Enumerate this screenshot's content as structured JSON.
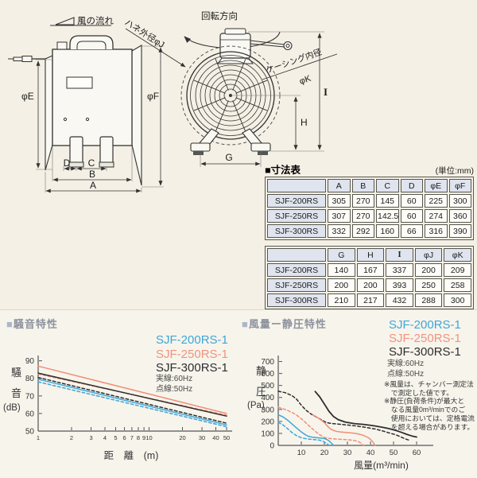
{
  "colors": {
    "blue": "#3ea6d8",
    "salmon": "#f0937e",
    "dark": "#2e2e2e"
  },
  "diagrams": {
    "side_view": {
      "wind_flow": "風の流れ",
      "phi_e": "φE",
      "phi_f": "φF",
      "dim_a": "A",
      "dim_b": "B",
      "dim_c": "C",
      "dim_d": "D"
    },
    "front_view": {
      "rotation": "回転方向",
      "blade_od": "ハネ外径φJ",
      "casing_id": "ケーシング内径",
      "casing_id_sym": "φK",
      "dim_g": "G",
      "dim_h": "H",
      "dim_i": "I"
    }
  },
  "dimension_tables": {
    "title": "■寸法表",
    "unit_note": "(単位:mm)",
    "models_table_1": {
      "headers": [
        "",
        "A",
        "B",
        "C",
        "D",
        "φE",
        "φF"
      ],
      "rows": [
        [
          "SJF-200RS",
          "305",
          "270",
          "145",
          "60",
          "225",
          "300"
        ],
        [
          "SJF-250RS",
          "307",
          "270",
          "142.5",
          "60",
          "274",
          "360"
        ],
        [
          "SJF-300RS",
          "332",
          "292",
          "160",
          "66",
          "316",
          "390"
        ]
      ]
    },
    "models_table_2": {
      "headers": [
        "",
        "G",
        "H",
        "I",
        "φJ",
        "φK"
      ],
      "rows": [
        [
          "SJF-200RS",
          "140",
          "167",
          "337",
          "200",
          "209"
        ],
        [
          "SJF-250RS",
          "200",
          "200",
          "393",
          "250",
          "258"
        ],
        [
          "SJF-300RS",
          "210",
          "217",
          "432",
          "288",
          "300"
        ]
      ]
    }
  },
  "chart_data": [
    {
      "type": "line",
      "title": "騒音特性",
      "title_marker": "■",
      "xlabel": "距　離　(m)",
      "ylabel": "騒音(dB)",
      "ylabel_lines": [
        "騒",
        "音",
        "(dB)"
      ],
      "xscale": "log",
      "xlim": [
        1,
        50
      ],
      "ylim": [
        50,
        93
      ],
      "xticks": [
        1,
        2,
        3,
        4,
        5,
        6,
        7,
        8,
        9,
        10,
        20,
        30,
        40,
        50
      ],
      "yticks": [
        50,
        60,
        70,
        80,
        90
      ],
      "grid": false,
      "legend_position": "top-right",
      "legend_items": [
        {
          "label": "SJF-200RS-1",
          "color": "#3ea6d8"
        },
        {
          "label": "SJF-250RS-1",
          "color": "#f0937e"
        },
        {
          "label": "SJF-300RS-1",
          "color": "#2e2e2e"
        }
      ],
      "line_key": [
        "実線:60Hz",
        "点線:50Hz"
      ],
      "series": [
        {
          "name": "SJF-250RS-1 60Hz",
          "color": "#ef8f76",
          "style": "solid",
          "points": [
            [
              1,
              87
            ],
            [
              50,
              60
            ]
          ]
        },
        {
          "name": "SJF-250RS-1 50Hz",
          "color": "#ef8f76",
          "style": "dashed",
          "points": [
            [
              1,
              82.5
            ],
            [
              50,
              59
            ]
          ]
        },
        {
          "name": "SJF-300RS-1 60Hz",
          "color": "#2e2e2e",
          "style": "solid",
          "points": [
            [
              1,
              83
            ],
            [
              50,
              58.5
            ]
          ]
        },
        {
          "name": "SJF-300RS-1 50Hz",
          "color": "#2e2e2e",
          "style": "dashed",
          "points": [
            [
              1,
              80.5
            ],
            [
              50,
              54.5
            ]
          ]
        },
        {
          "name": "SJF-200RS-1 60Hz",
          "color": "#3ea6d8",
          "style": "solid",
          "points": [
            [
              1,
              79.5
            ],
            [
              50,
              53.5
            ]
          ]
        },
        {
          "name": "SJF-200RS-1 50Hz",
          "color": "#3ea6d8",
          "style": "dashed",
          "points": [
            [
              1,
              78
            ],
            [
              50,
              52.5
            ]
          ]
        }
      ]
    },
    {
      "type": "line",
      "title": "風量ー静圧特性",
      "title_marker": "■",
      "xlabel": "風量(m³/min)",
      "ylabel": "静圧(Pa)",
      "ylabel_lines": [
        "静",
        "圧",
        "(Pa)"
      ],
      "xscale": "linear",
      "xlim": [
        0,
        65.5
      ],
      "ylim": [
        0,
        750
      ],
      "xticks": [
        10,
        20,
        30,
        40,
        50,
        60
      ],
      "yticks": [
        0,
        100,
        200,
        300,
        400,
        500,
        600,
        700
      ],
      "grid": false,
      "legend_position": "top-right",
      "legend_items": [
        {
          "label": "SJF-200RS-1",
          "color": "#3ea6d8"
        },
        {
          "label": "SJF-250RS-1",
          "color": "#f0937e"
        },
        {
          "label": "SJF-300RS-1",
          "color": "#2e2e2e"
        }
      ],
      "line_key": [
        "実線:60Hz",
        "点線:50Hz"
      ],
      "notes": [
        "※風量は、チャンバー測定法",
        "　で測定した値です。",
        "※静圧(負荷条件)が最大と",
        "　なる風量0m³/minでのご",
        "　使用においては、定格電流",
        "　を超える場合があります。"
      ],
      "series": [
        {
          "name": "SJF-300RS-1 60Hz",
          "color": "#2e2e2e",
          "style": "solid",
          "width": 1.8,
          "points": [
            [
              16,
              450
            ],
            [
              18,
              405
            ],
            [
              20,
              345
            ],
            [
              22,
              285
            ],
            [
              24,
              240
            ],
            [
              26,
              215
            ],
            [
              29,
              195
            ],
            [
              33,
              182
            ],
            [
              37,
              175
            ],
            [
              41,
              165
            ],
            [
              45,
              152
            ],
            [
              48,
              140
            ],
            [
              51,
              125
            ],
            [
              54,
              105
            ],
            [
              56,
              90
            ],
            [
              58,
              78
            ],
            [
              60,
              70
            ]
          ]
        },
        {
          "name": "SJF-300RS-1 50Hz",
          "color": "#2e2e2e",
          "style": "dashed",
          "points": [
            [
              0,
              452
            ],
            [
              3,
              440
            ],
            [
              6,
              415
            ],
            [
              8,
              385
            ],
            [
              10,
              335
            ],
            [
              12,
              295
            ],
            [
              14,
              265
            ],
            [
              16,
              242
            ],
            [
              18,
              222
            ],
            [
              20,
              200
            ],
            [
              21,
              190
            ],
            [
              23,
              183
            ],
            [
              26,
              178
            ],
            [
              30,
              170
            ],
            [
              34,
              162
            ],
            [
              38,
              150
            ],
            [
              42,
              137
            ],
            [
              45,
              122
            ],
            [
              48,
              105
            ],
            [
              51,
              88
            ],
            [
              53,
              72
            ],
            [
              55,
              55
            ],
            [
              57,
              42
            ]
          ]
        },
        {
          "name": "SJF-250RS-1 60Hz",
          "color": "#ef8f76",
          "style": "solid",
          "points": [
            [
              15,
              255
            ],
            [
              16,
              245
            ],
            [
              18,
              220
            ],
            [
              20,
              190
            ],
            [
              21,
              168
            ],
            [
              22,
              148
            ],
            [
              23,
              133
            ],
            [
              25,
              118
            ],
            [
              27,
              112
            ],
            [
              30,
              107
            ],
            [
              33,
              101
            ],
            [
              35,
              94
            ],
            [
              37,
              83
            ],
            [
              39,
              65
            ],
            [
              40,
              50
            ],
            [
              41,
              30
            ],
            [
              42,
              0
            ]
          ]
        },
        {
          "name": "SJF-250RS-1 50Hz",
          "color": "#ef8f76",
          "style": "dashed",
          "points": [
            [
              0,
              318
            ],
            [
              3,
              300
            ],
            [
              6,
              275
            ],
            [
              8,
              252
            ],
            [
              10,
              222
            ],
            [
              12,
              188
            ],
            [
              14,
              152
            ],
            [
              16,
              118
            ],
            [
              18,
              88
            ],
            [
              20,
              66
            ],
            [
              22,
              58
            ],
            [
              25,
              53
            ],
            [
              28,
              50
            ],
            [
              31,
              46
            ],
            [
              33,
              41
            ],
            [
              35,
              30
            ],
            [
              36,
              18
            ],
            [
              37,
              0
            ]
          ]
        },
        {
          "name": "SJF-200RS-1 60Hz",
          "color": "#3ea6d8",
          "style": "solid",
          "points": [
            [
              0,
              255
            ],
            [
              2,
              238
            ],
            [
              4,
              212
            ],
            [
              6,
              178
            ],
            [
              8,
              145
            ],
            [
              10,
              112
            ],
            [
              12,
              86
            ],
            [
              13,
              76
            ],
            [
              15,
              68
            ],
            [
              17,
              64
            ],
            [
              19,
              60
            ],
            [
              20,
              57
            ],
            [
              21,
              50
            ],
            [
              22,
              38
            ],
            [
              23,
              20
            ],
            [
              24,
              0
            ]
          ]
        },
        {
          "name": "SJF-200RS-1 50Hz",
          "color": "#3ea6d8",
          "style": "dashed",
          "points": [
            [
              0,
              192
            ],
            [
              2,
              172
            ],
            [
              4,
              140
            ],
            [
              6,
              106
            ],
            [
              8,
              80
            ],
            [
              10,
              64
            ],
            [
              12,
              56
            ],
            [
              14,
              51
            ],
            [
              16,
              48
            ],
            [
              18,
              43
            ],
            [
              19,
              38
            ],
            [
              20,
              28
            ],
            [
              21,
              15
            ],
            [
              22,
              2
            ]
          ]
        }
      ]
    }
  ]
}
